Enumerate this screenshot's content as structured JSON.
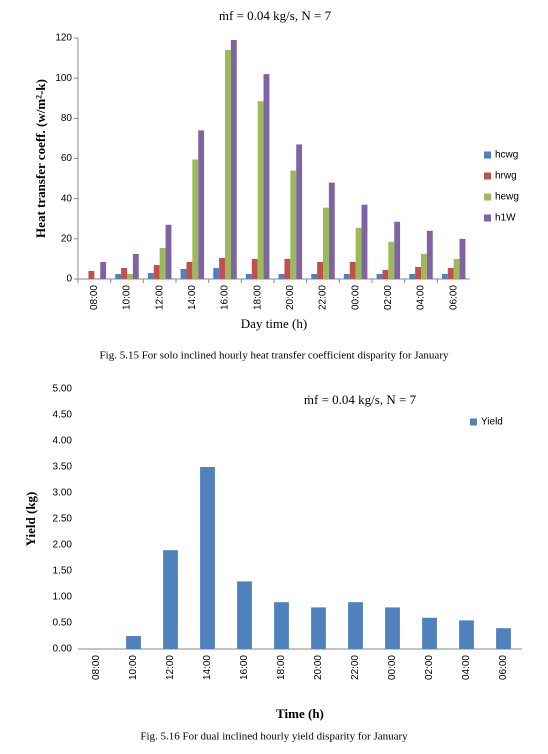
{
  "chart_data": [
    {
      "type": "bar",
      "title": "ṁf = 0.04 kg/s, N = 7",
      "y_label": "Heat transfer coeff. (w/m²-k)",
      "x_label": "Day time (h)",
      "caption": "Fig. 5.15 For solo inclined hourly heat transfer coefficient disparity for January",
      "categories": [
        "08:00",
        "10:00",
        "12:00",
        "14:00",
        "16:00",
        "18:00",
        "20:00",
        "22:00",
        "00:00",
        "02:00",
        "04:00",
        "06:00"
      ],
      "series": [
        {
          "name": "hcwg",
          "color": "#4f81bd",
          "values": [
            0,
            2.5,
            3,
            5,
            5.5,
            2.5,
            2.5,
            2.5,
            2.5,
            2.5,
            2.5,
            2.5
          ]
        },
        {
          "name": "hrwg",
          "color": "#c0504d",
          "values": [
            4,
            5.5,
            7,
            8.5,
            10.5,
            10,
            10,
            8.5,
            8.5,
            4.5,
            6,
            5.5
          ]
        },
        {
          "name": "hewg",
          "color": "#9bbb59",
          "values": [
            0,
            2.5,
            15.5,
            59.5,
            114,
            88.5,
            54,
            35.5,
            25.5,
            18.5,
            12.5,
            10
          ]
        },
        {
          "name": "h1W",
          "color": "#8064a2",
          "values": [
            8.5,
            12.5,
            27,
            74,
            119,
            102,
            67,
            48,
            37,
            28.5,
            24,
            20
          ]
        }
      ],
      "ylim": [
        0,
        120
      ],
      "yticks": [
        0,
        20,
        40,
        60,
        80,
        100,
        120
      ],
      "grid": false,
      "legend": "right"
    },
    {
      "type": "bar",
      "title": "ṁf = 0.04 kg/s, N = 7",
      "y_label": "Yield (kg)",
      "x_label": "Time (h)",
      "caption": "Fig. 5.16 For dual inclined hourly yield disparity for January",
      "categories": [
        "08:00",
        "10:00",
        "12:00",
        "14:00",
        "16:00",
        "18:00",
        "20:00",
        "22:00",
        "00:00",
        "02:00",
        "04:00",
        "06:00"
      ],
      "series": [
        {
          "name": "Yield",
          "color": "#4f81bd",
          "values": [
            0,
            0.25,
            1.9,
            3.5,
            1.3,
            0.9,
            0.8,
            0.9,
            0.8,
            0.6,
            0.55,
            0.4
          ]
        }
      ],
      "ylim": [
        0,
        5
      ],
      "yticks": [
        {
          "value": 0,
          "label": "0.00"
        },
        {
          "value": 0.5,
          "label": "0.50"
        },
        {
          "value": 1,
          "label": "1.00"
        },
        {
          "value": 1.5,
          "label": "1.50"
        },
        {
          "value": 2,
          "label": "2.00"
        },
        {
          "value": 2.5,
          "label": "2.50"
        },
        {
          "value": 3,
          "label": "3.00"
        },
        {
          "value": 3.5,
          "label": "3.50"
        },
        {
          "value": 4,
          "label": "4.00"
        },
        {
          "value": 4.5,
          "label": "4.50"
        },
        {
          "value": 5,
          "label": "5.00"
        }
      ],
      "grid": false,
      "legend": "top-right"
    }
  ]
}
